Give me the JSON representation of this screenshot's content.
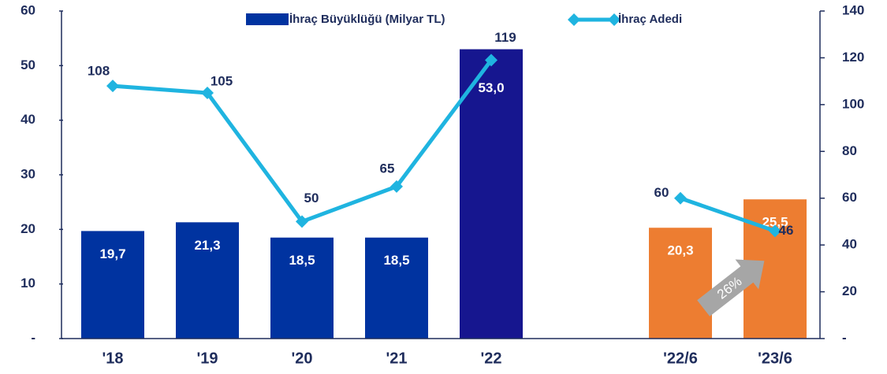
{
  "chart_data": {
    "type": "bar_line",
    "categories": [
      "'18",
      "'19",
      "'20",
      "'21",
      "'22",
      null,
      "'22/6",
      "'23/6"
    ],
    "series": [
      {
        "name": "İhraç Büyüklüğü (Milyar TL)",
        "type": "bar",
        "color": "#0033a0",
        "colors": [
          "#0033a0",
          "#0033a0",
          "#0033a0",
          "#0033a0",
          "#16168f",
          null,
          "#ed7d31",
          "#ed7d31"
        ],
        "values": [
          19.7,
          21.3,
          18.5,
          18.5,
          53.0,
          null,
          20.3,
          25.5
        ],
        "value_labels": [
          "19,7",
          "21,3",
          "18,5",
          "18,5",
          "53,0",
          null,
          "20,3",
          "25,5"
        ]
      },
      {
        "name": "İhraç Adedi",
        "type": "line",
        "axis": "y2",
        "color": "#1fb4e0",
        "values": [
          108,
          105,
          50,
          65,
          119,
          null,
          60,
          46
        ]
      }
    ],
    "ylim": [
      0,
      60
    ],
    "yticks": [
      {
        "value": 0,
        "label": "-"
      },
      10,
      20,
      30,
      40,
      50,
      60
    ],
    "y2lim": [
      0,
      140
    ],
    "y2ticks": [
      {
        "value": 0,
        "label": "-"
      },
      20,
      40,
      60,
      80,
      100,
      120,
      140
    ],
    "annotation": "26%"
  }
}
